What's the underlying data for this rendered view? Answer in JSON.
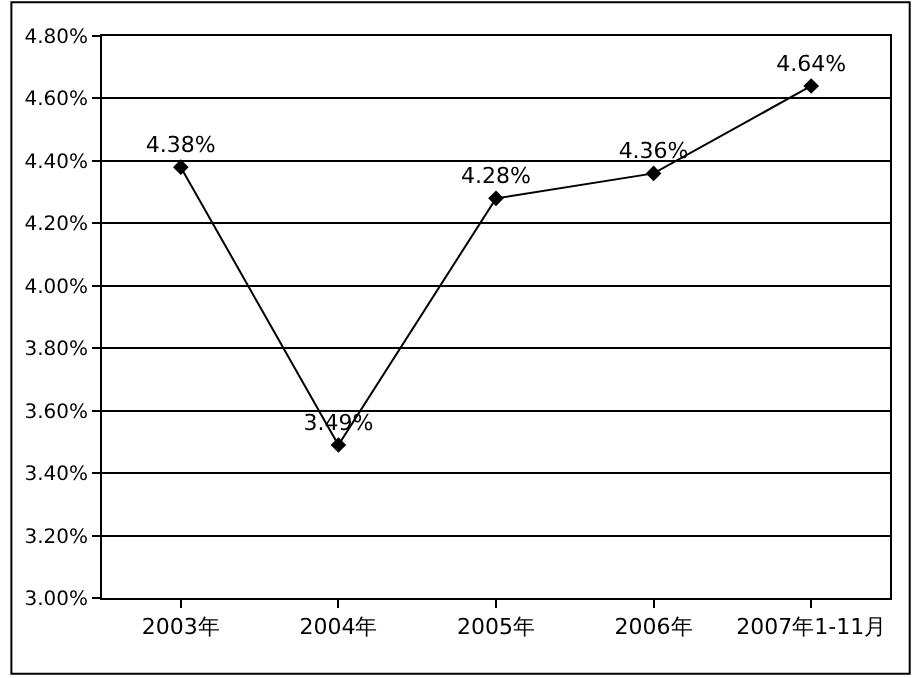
{
  "chart_data": {
    "type": "line",
    "categories": [
      "2003年",
      "2004年",
      "2005年",
      "2006年",
      "2007年1-11月"
    ],
    "series": [
      {
        "color": "#000000",
        "values": [
          4.38,
          3.49,
          4.28,
          4.36,
          4.64
        ],
        "value_labels": [
          "4.38%",
          "3.49%",
          "4.28%",
          "4.36%",
          "4.64%"
        ]
      }
    ],
    "ylim": [
      3.0,
      4.8
    ],
    "yticks": [
      {
        "value": 3.0,
        "label": "3.00%"
      },
      {
        "value": 3.2,
        "label": "3.20%"
      },
      {
        "value": 3.4,
        "label": "3.40%"
      },
      {
        "value": 3.6,
        "label": "3.60%"
      },
      {
        "value": 3.8,
        "label": "3.80%"
      },
      {
        "value": 4.0,
        "label": "4.00%"
      },
      {
        "value": 4.2,
        "label": "4.20%"
      },
      {
        "value": 4.4,
        "label": "4.40%"
      },
      {
        "value": 4.6,
        "label": "4.60%"
      },
      {
        "value": 4.8,
        "label": "4.80%"
      }
    ],
    "grid": "y",
    "marker": "diamond",
    "line_style": "solid",
    "legend": false
  }
}
